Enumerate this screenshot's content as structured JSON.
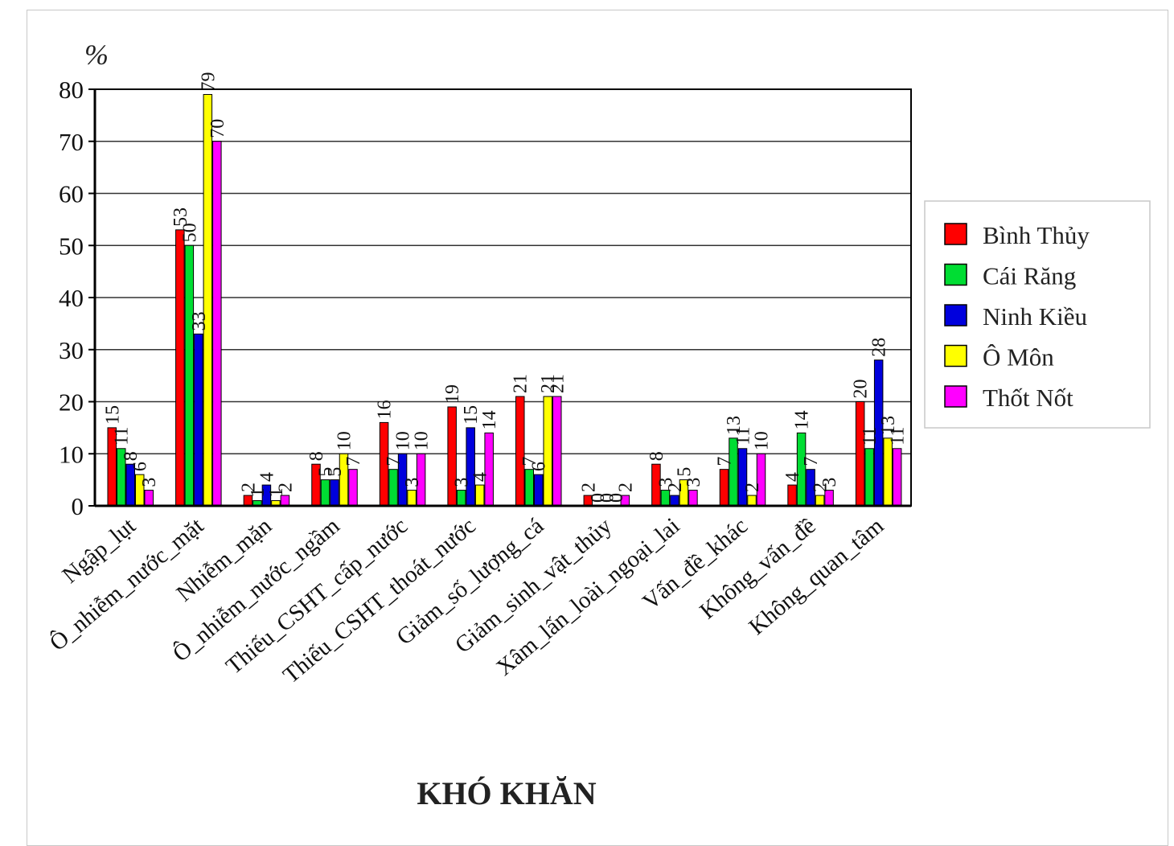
{
  "chart_data": {
    "type": "bar",
    "title": "",
    "xlabel": "KHÓ KHĂN",
    "ylabel": "%",
    "ylim": [
      0,
      80
    ],
    "yticks": [
      0,
      10,
      20,
      30,
      40,
      50,
      60,
      70,
      80
    ],
    "grid": true,
    "legend_position": "right",
    "categories": [
      "Ngập_lụt",
      "Ô_nhiễm_nước_mặt",
      "Nhiễm_mặn",
      "Ô_nhiễm_nước_ngầm",
      "Thiếu_CSHT_cấp_nước",
      "Thiếu_CSHT_thoát_nước",
      "Giảm_số_lượng_cá",
      "Giảm_sinh_vật_thủy",
      "Xâm_lấn_loài_ngoại_lai",
      "Vấn_đề_khác",
      "Không_vấn_đề",
      "Không_quan_tâm"
    ],
    "series": [
      {
        "name": "Bình Thủy",
        "color": "#ff0000",
        "values": [
          15,
          53,
          2,
          8,
          16,
          19,
          21,
          2,
          8,
          7,
          4,
          20
        ]
      },
      {
        "name": "Cái Răng",
        "color": "#00dd33",
        "values": [
          11,
          50,
          1,
          5,
          7,
          3,
          7,
          0,
          3,
          13,
          14,
          11
        ]
      },
      {
        "name": "Ninh Kiều",
        "color": "#0000dd",
        "values": [
          8,
          33,
          4,
          5,
          10,
          15,
          6,
          0,
          2,
          11,
          7,
          28
        ]
      },
      {
        "name": "Ô Môn",
        "color": "#ffff00",
        "values": [
          6,
          79,
          1,
          10,
          3,
          4,
          21,
          0,
          5,
          2,
          2,
          13
        ]
      },
      {
        "name": "Thốt Nốt",
        "color": "#ff00ff",
        "values": [
          3,
          70,
          2,
          7,
          10,
          14,
          21,
          2,
          3,
          10,
          3,
          11
        ]
      }
    ],
    "data_labels": [
      [
        "15",
        "11",
        "8",
        "6",
        "3"
      ],
      [
        "53",
        "50",
        "33",
        "79",
        "70"
      ],
      [
        "2",
        "1",
        "4",
        "1",
        "2"
      ],
      [
        "8",
        "5",
        "5",
        "10",
        "7"
      ],
      [
        "16",
        "7",
        "10",
        "3",
        "10"
      ],
      [
        "19",
        "3",
        "15",
        "4",
        "14"
      ],
      [
        "21",
        "7",
        "6",
        "21",
        "21"
      ],
      [
        "2",
        "0",
        "0",
        "0",
        "2"
      ],
      [
        "8",
        "3",
        "2",
        "5",
        "3"
      ],
      [
        "7",
        "13",
        "11",
        "2",
        "10"
      ],
      [
        "4",
        "14",
        "7",
        "2",
        "3"
      ],
      [
        "20",
        "11",
        "28",
        "13",
        "11"
      ]
    ]
  }
}
